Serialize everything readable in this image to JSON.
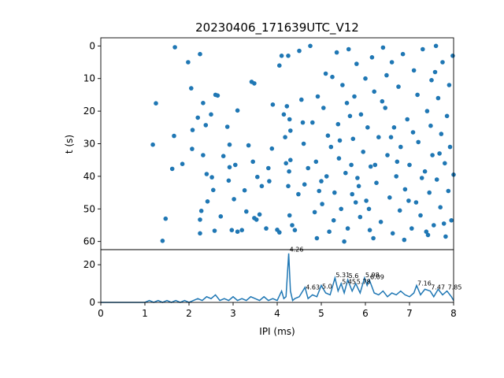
{
  "chart_data": [
    {
      "type": "scatter",
      "title": "20230406_171639UTC_V12",
      "xlabel": "",
      "ylabel": "t (s)",
      "xlim": [
        0,
        8
      ],
      "ylim": [
        62.5,
        -2.5
      ],
      "y_inverted": true,
      "grid": false,
      "color": "#1f77b4",
      "yticks": [
        "0",
        "10",
        "20",
        "30",
        "40",
        "50",
        "60"
      ],
      "points": [
        [
          1.18,
          30.3
        ],
        [
          1.25,
          17.6
        ],
        [
          1.4,
          59.8
        ],
        [
          1.47,
          53.0
        ],
        [
          1.62,
          37.7
        ],
        [
          1.68,
          0.4
        ],
        [
          1.66,
          27.6
        ],
        [
          1.85,
          36.2
        ],
        [
          1.98,
          5.0
        ],
        [
          2.05,
          13.0
        ],
        [
          2.08,
          25.8
        ],
        [
          2.07,
          31.6
        ],
        [
          2.2,
          22.0
        ],
        [
          2.25,
          2.5
        ],
        [
          2.32,
          17.5
        ],
        [
          2.38,
          24.3
        ],
        [
          2.32,
          33.5
        ],
        [
          2.28,
          50.6
        ],
        [
          2.25,
          53.3
        ],
        [
          2.25,
          57.5
        ],
        [
          2.42,
          47.7
        ],
        [
          2.4,
          39.3
        ],
        [
          2.5,
          21.0
        ],
        [
          2.52,
          40.3
        ],
        [
          2.55,
          44.2
        ],
        [
          2.58,
          56.7
        ],
        [
          2.6,
          15.0
        ],
        [
          2.65,
          15.2
        ],
        [
          2.72,
          52.3
        ],
        [
          2.78,
          33.8
        ],
        [
          2.87,
          24.8
        ],
        [
          2.92,
          30.3
        ],
        [
          2.9,
          41.3
        ],
        [
          2.92,
          37.2
        ],
        [
          2.97,
          56.5
        ],
        [
          3.02,
          47.0
        ],
        [
          3.05,
          36.5
        ],
        [
          3.1,
          19.8
        ],
        [
          3.1,
          57.0
        ],
        [
          3.2,
          56.5
        ],
        [
          3.26,
          44.3
        ],
        [
          3.3,
          50.8
        ],
        [
          3.35,
          30.5
        ],
        [
          3.42,
          11.0
        ],
        [
          3.48,
          11.5
        ],
        [
          3.45,
          35.5
        ],
        [
          3.48,
          52.8
        ],
        [
          3.53,
          53.3
        ],
        [
          3.55,
          40.2
        ],
        [
          3.6,
          51.7
        ],
        [
          3.65,
          43.0
        ],
        [
          3.75,
          56.0
        ],
        [
          3.8,
          37.5
        ],
        [
          3.82,
          41.5
        ],
        [
          3.88,
          31.5
        ],
        [
          3.9,
          18.0
        ],
        [
          4.0,
          56.4
        ],
        [
          4.05,
          57.2
        ],
        [
          4.1,
          3.0
        ],
        [
          4.15,
          21.0
        ],
        [
          4.2,
          36.0
        ],
        [
          4.25,
          3.0
        ],
        [
          4.22,
          18.5
        ],
        [
          4.28,
          22.5
        ],
        [
          4.3,
          26.0
        ],
        [
          4.3,
          35.0
        ],
        [
          4.27,
          38.5
        ],
        [
          4.25,
          43.0
        ],
        [
          4.28,
          52.0
        ],
        [
          4.34,
          55.0
        ],
        [
          4.4,
          56.5
        ],
        [
          4.5,
          1.5
        ],
        [
          4.55,
          16.5
        ],
        [
          4.6,
          30.0
        ],
        [
          4.62,
          42.5
        ],
        [
          4.7,
          37.5
        ],
        [
          4.75,
          0.0
        ],
        [
          4.8,
          23.5
        ],
        [
          4.88,
          35.5
        ],
        [
          4.9,
          59.0
        ],
        [
          4.95,
          44.5
        ],
        [
          5.0,
          41.5
        ],
        [
          5.05,
          19.0
        ],
        [
          5.1,
          8.5
        ],
        [
          5.12,
          40.0
        ],
        [
          5.15,
          27.5
        ],
        [
          5.18,
          57.0
        ],
        [
          5.22,
          31.0
        ],
        [
          5.3,
          45.0
        ],
        [
          5.35,
          2.0
        ],
        [
          5.38,
          24.0
        ],
        [
          5.4,
          34.5
        ],
        [
          5.45,
          50.0
        ],
        [
          5.48,
          12.0
        ],
        [
          5.52,
          60.0
        ],
        [
          5.58,
          17.5
        ],
        [
          5.6,
          56.0
        ],
        [
          5.62,
          1.0
        ],
        [
          5.68,
          36.5
        ],
        [
          5.7,
          45.5
        ],
        [
          5.72,
          28.5
        ],
        [
          5.75,
          15.5
        ],
        [
          5.8,
          5.5
        ],
        [
          5.82,
          40.5
        ],
        [
          5.88,
          52.5
        ],
        [
          5.9,
          21.0
        ],
        [
          5.95,
          32.5
        ],
        [
          6.0,
          10.0
        ],
        [
          6.02,
          47.5
        ],
        [
          6.05,
          25.0
        ],
        [
          6.1,
          56.5
        ],
        [
          6.12,
          37.0
        ],
        [
          6.15,
          3.5
        ],
        [
          6.2,
          14.0
        ],
        [
          6.25,
          42.0
        ],
        [
          6.3,
          28.0
        ],
        [
          6.35,
          54.0
        ],
        [
          6.4,
          0.5
        ],
        [
          6.45,
          19.0
        ],
        [
          6.5,
          33.5
        ],
        [
          6.55,
          46.5
        ],
        [
          6.6,
          5.0
        ],
        [
          6.62,
          57.5
        ],
        [
          6.65,
          25.0
        ],
        [
          6.7,
          40.0
        ],
        [
          6.75,
          12.5
        ],
        [
          6.78,
          50.5
        ],
        [
          6.8,
          31.0
        ],
        [
          6.85,
          2.5
        ],
        [
          6.9,
          44.0
        ],
        [
          6.95,
          22.5
        ],
        [
          7.0,
          36.5
        ],
        [
          7.05,
          56.0
        ],
        [
          7.1,
          7.5
        ],
        [
          7.15,
          48.0
        ],
        [
          7.18,
          15.0
        ],
        [
          7.2,
          29.5
        ],
        [
          7.25,
          52.0
        ],
        [
          7.3,
          1.0
        ],
        [
          7.35,
          38.5
        ],
        [
          7.4,
          20.0
        ],
        [
          7.42,
          58.0
        ],
        [
          7.45,
          45.0
        ],
        [
          7.5,
          10.5
        ],
        [
          7.52,
          33.5
        ],
        [
          7.55,
          55.0
        ],
        [
          7.6,
          0.0
        ],
        [
          7.62,
          41.0
        ],
        [
          7.65,
          16.0
        ],
        [
          7.7,
          49.5
        ],
        [
          7.72,
          27.0
        ],
        [
          7.75,
          5.0
        ],
        [
          7.8,
          36.0
        ],
        [
          7.82,
          58.5
        ],
        [
          7.85,
          21.5
        ],
        [
          7.88,
          44.5
        ],
        [
          7.9,
          12.0
        ],
        [
          7.92,
          31.0
        ],
        [
          7.95,
          53.5
        ],
        [
          7.98,
          3.0
        ],
        [
          8.0,
          39.5
        ],
        [
          4.05,
          6.0
        ],
        [
          4.48,
          45.5
        ],
        [
          4.85,
          51.0
        ],
        [
          5.25,
          9.5
        ],
        [
          5.55,
          39.0
        ],
        [
          5.85,
          43.0
        ],
        [
          6.18,
          59.0
        ],
        [
          6.48,
          9.0
        ],
        [
          6.72,
          35.5
        ],
        [
          7.08,
          26.5
        ],
        [
          7.38,
          57.0
        ],
        [
          7.68,
          33.0
        ],
        [
          4.92,
          15.5
        ],
        [
          5.28,
          53.5
        ],
        [
          5.65,
          21.5
        ],
        [
          6.08,
          50.0
        ],
        [
          6.38,
          17.0
        ],
        [
          6.88,
          59.5
        ],
        [
          7.28,
          40.5
        ],
        [
          7.58,
          8.0
        ],
        [
          4.18,
          28.0
        ],
        [
          4.58,
          23.5
        ],
        [
          5.02,
          48.5
        ],
        [
          5.42,
          29.0
        ],
        [
          5.78,
          48.0
        ],
        [
          6.22,
          36.5
        ],
        [
          6.58,
          28.0
        ],
        [
          6.98,
          47.5
        ],
        [
          7.48,
          24.5
        ],
        [
          7.78,
          54.5
        ]
      ]
    },
    {
      "type": "line",
      "xlabel": "IPI (ms)",
      "ylabel": "",
      "xlim": [
        0,
        8
      ],
      "ylim": [
        0,
        28
      ],
      "grid": false,
      "color": "#1f77b4",
      "xticks": [
        "0",
        "1",
        "2",
        "3",
        "4",
        "5",
        "6",
        "7",
        "8"
      ],
      "yticks": [
        "0",
        "20"
      ],
      "peak_labels": [
        {
          "x": 4.26,
          "y": 26.5,
          "text": "4.26"
        },
        {
          "x": 4.63,
          "y": 6.5,
          "text": "4.63"
        },
        {
          "x": 5.0,
          "y": 7.0,
          "text": "5.0"
        },
        {
          "x": 5.31,
          "y": 13.0,
          "text": "5.31"
        },
        {
          "x": 5.45,
          "y": 9.5,
          "text": "5.45"
        },
        {
          "x": 5.6,
          "y": 12.5,
          "text": "5.6"
        },
        {
          "x": 5.78,
          "y": 9.5,
          "text": "5.78"
        },
        {
          "x": 5.98,
          "y": 13.0,
          "text": "5.98"
        },
        {
          "x": 6.09,
          "y": 12.0,
          "text": "6.09"
        },
        {
          "x": 7.16,
          "y": 8.5,
          "text": "7.16"
        },
        {
          "x": 7.47,
          "y": 6.5,
          "text": "7.47"
        },
        {
          "x": 7.85,
          "y": 6.5,
          "text": "7.85"
        }
      ],
      "x": [
        0,
        0.5,
        1.0,
        1.1,
        1.2,
        1.3,
        1.4,
        1.5,
        1.6,
        1.7,
        1.8,
        1.9,
        2.0,
        2.1,
        2.2,
        2.3,
        2.4,
        2.5,
        2.6,
        2.7,
        2.8,
        2.9,
        3.0,
        3.1,
        3.2,
        3.3,
        3.4,
        3.5,
        3.6,
        3.7,
        3.8,
        3.9,
        4.0,
        4.1,
        4.15,
        4.2,
        4.26,
        4.3,
        4.35,
        4.4,
        4.5,
        4.63,
        4.7,
        4.8,
        4.9,
        5.0,
        5.1,
        5.2,
        5.31,
        5.38,
        5.45,
        5.52,
        5.6,
        5.7,
        5.78,
        5.88,
        5.98,
        6.04,
        6.09,
        6.2,
        6.3,
        6.4,
        6.5,
        6.6,
        6.7,
        6.8,
        6.9,
        7.0,
        7.1,
        7.16,
        7.25,
        7.35,
        7.47,
        7.55,
        7.65,
        7.75,
        7.85,
        7.95,
        8.0
      ],
      "values": [
        0,
        0,
        0,
        1,
        0,
        1,
        0,
        1,
        0,
        1,
        0,
        1,
        0,
        1,
        2,
        1,
        3,
        2,
        4,
        1,
        2,
        1,
        3,
        1,
        2,
        1,
        3,
        2,
        1,
        3,
        1,
        2,
        1,
        6,
        2,
        3,
        26,
        6,
        1,
        2,
        3,
        8,
        2,
        4,
        3,
        9,
        5,
        4,
        13,
        6,
        10,
        5,
        12,
        6,
        10,
        5,
        13,
        9,
        12,
        5,
        4,
        6,
        3,
        5,
        4,
        6,
        4,
        3,
        5,
        9,
        4,
        7,
        6,
        3,
        7,
        4,
        6,
        3,
        1
      ]
    }
  ]
}
